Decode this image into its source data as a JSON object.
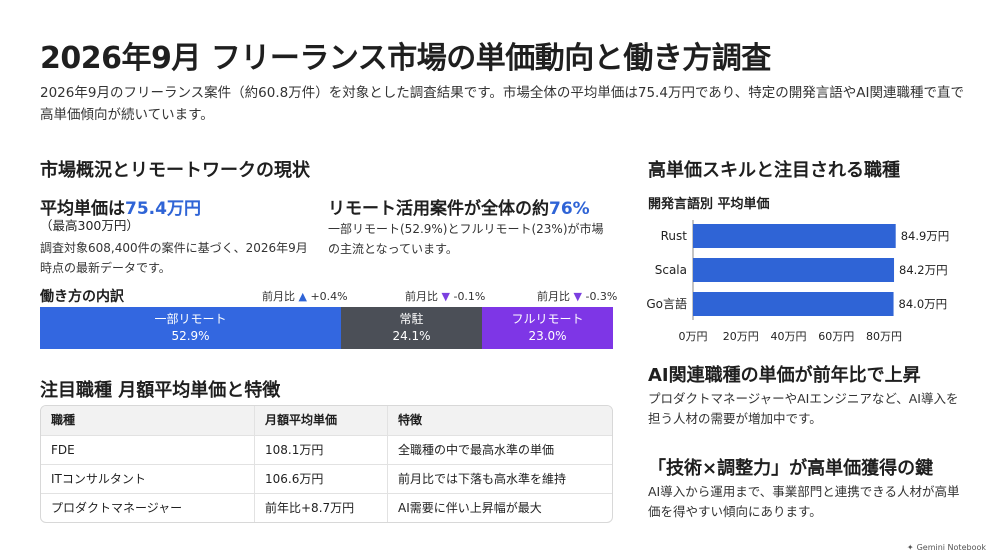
{
  "header": {
    "title": "2026年9月 フリーランス市場の単価動向と働き方調査",
    "description": "2026年9月のフリーランス案件（約60.8万件）を対象とした調査結果です。市場全体の平均単価は75.4万円であり、特定の開発言語やAI関連職種で直で高単価傾向が続いています。"
  },
  "market": {
    "heading": "市場概況とリモートワークの現状",
    "avg_prefix": "平均単価は",
    "avg_value": "75.4万円",
    "avg_max": "（最高300万円）",
    "avg_note": "調査対象608,400件の案件に基づく、2026年9月時点の最新データです。",
    "remote_prefix": "リモート活用案件が全体の約",
    "remote_value": "76%",
    "remote_note": "一部リモート(52.9%)とフルリモート(23%)が市場の主流となっています。"
  },
  "work_style": {
    "heading": "働き方の内訳",
    "segments": [
      {
        "label": "一部リモート",
        "value": "52.9%",
        "share": 52.9,
        "color": "#3367e0",
        "mom_label": "前月比",
        "mom_arrow": "▲",
        "mom_value": "+0.4%",
        "trend": "up"
      },
      {
        "label": "常駐",
        "value": "24.1%",
        "share": 24.1,
        "color": "#4b4f57",
        "mom_label": "前月比",
        "mom_arrow": "▼",
        "mom_value": "-0.1%",
        "trend": "down"
      },
      {
        "label": "フルリモート",
        "value": "23.0%",
        "share": 23.0,
        "color": "#7e36e6",
        "mom_label": "前月比",
        "mom_arrow": "▼",
        "mom_value": "-0.3%",
        "trend": "down"
      }
    ]
  },
  "jobs": {
    "heading": "注目職種 月額平均単価と特徴",
    "columns": [
      "職種",
      "月額平均単価",
      "特徴"
    ],
    "rows": [
      [
        "FDE",
        "108.1万円",
        "全職種の中で最高水準の単価"
      ],
      [
        "ITコンサルタント",
        "106.6万円",
        "前月比では下落も高水準を維持"
      ],
      [
        "プロダクトマネージャー",
        "前年比+8.7万円",
        "AI需要に伴い上昇幅が最大"
      ]
    ]
  },
  "skills": {
    "heading": "高単価スキルと注目される職種",
    "chart_title": "開発言語別 平均単価"
  },
  "chart_data": {
    "type": "bar",
    "orientation": "horizontal",
    "title": "開発言語別 平均単価",
    "categories": [
      "Rust",
      "Scala",
      "Go言語"
    ],
    "values": [
      84.9,
      84.2,
      84.0
    ],
    "value_labels": [
      "84.9万円",
      "84.2万円",
      "84.0万円"
    ],
    "x_ticks": [
      "0万円",
      "20万円",
      "40万円",
      "60万円",
      "80万円"
    ],
    "xlim": [
      0,
      80
    ],
    "color": "#2f64d6",
    "grid": false
  },
  "ai_section": {
    "heading": "AI関連職種の単価が前年比で上昇",
    "text": "プロダクトマネージャーやAIエンジニアなど、AI導入を担う人材の需要が増加中です。"
  },
  "key_section": {
    "heading": "「技術×調整力」が高単価獲得の鍵",
    "text": "AI導入から運用まで、事業部門と連携できる人材が高単価を得やすい傾向にあります。"
  },
  "footer": {
    "brand": "Gemini Notebook",
    "icon": "sparkle-icon"
  }
}
